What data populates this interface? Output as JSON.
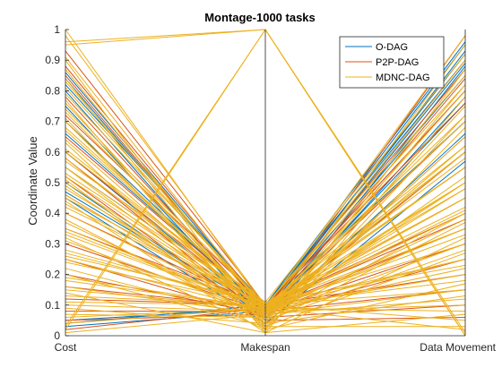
{
  "chart_data": {
    "type": "parallel-coordinates",
    "title": "Montage-1000 tasks",
    "xlabel": "",
    "ylabel": "Coordinate Value",
    "ylim": [
      0,
      1
    ],
    "y_ticks": [
      "0",
      "0.1",
      "0.2",
      "0.3",
      "0.4",
      "0.5",
      "0.6",
      "0.7",
      "0.8",
      "0.9",
      "1"
    ],
    "categories": [
      "Cost",
      "Makespan",
      "Data Movement"
    ],
    "grid": false,
    "legend_position": "top-right",
    "series": [
      {
        "name": "O-DAG",
        "color": "#0072BD",
        "lines": [
          [
            0.86,
            0.09,
            0.95
          ],
          [
            0.84,
            0.08,
            0.93
          ],
          [
            0.82,
            0.1,
            0.9
          ],
          [
            0.75,
            0.05,
            0.88
          ],
          [
            0.7,
            0.08,
            0.85
          ],
          [
            0.66,
            0.09,
            0.8
          ],
          [
            0.6,
            0.07,
            0.76
          ],
          [
            0.55,
            0.1,
            0.7
          ],
          [
            0.5,
            0.06,
            0.66
          ],
          [
            0.47,
            0.08,
            0.6
          ],
          [
            0.45,
            0.04,
            0.57
          ],
          [
            0.05,
            0.09,
            0.92
          ],
          [
            0.04,
            0.1,
            0.96
          ],
          [
            0.03,
            0.08,
            0.89
          ],
          [
            0.8,
            0.06,
            0.78
          ]
        ]
      },
      {
        "name": "P2P-DAG",
        "color": "#D95319",
        "lines": [
          [
            0.93,
            0.1,
            0.4
          ],
          [
            0.88,
            0.09,
            0.35
          ],
          [
            0.85,
            0.08,
            0.3
          ],
          [
            0.78,
            0.07,
            0.25
          ],
          [
            0.72,
            0.1,
            0.2
          ],
          [
            0.65,
            0.09,
            0.55
          ],
          [
            0.6,
            0.08,
            0.15
          ],
          [
            0.58,
            0.06,
            0.1
          ],
          [
            0.52,
            0.05,
            0.06
          ],
          [
            0.46,
            0.07,
            0.84
          ],
          [
            0.4,
            0.09,
            0.8
          ],
          [
            0.35,
            0.1,
            0.76
          ],
          [
            0.3,
            0.08,
            0.7
          ],
          [
            0.25,
            0.06,
            0.65
          ],
          [
            0.2,
            0.07,
            0.6
          ],
          [
            0.16,
            0.09,
            0.45
          ],
          [
            0.12,
            0.1,
            0.38
          ],
          [
            0.08,
            0.08,
            0.9
          ],
          [
            0.05,
            0.07,
            0.98
          ],
          [
            0.02,
            0.09,
            0.87
          ]
        ]
      },
      {
        "name": "MDNC-DAG",
        "color": "#EDB120",
        "lines": [
          [
            1.0,
            0.09,
            0.02
          ],
          [
            0.98,
            0.1,
            0.05
          ],
          [
            0.95,
            1.0,
            0.0
          ],
          [
            0.96,
            1.0,
            0.0
          ],
          [
            0.02,
            1.0,
            0.01
          ],
          [
            0.03,
            1.0,
            0.0
          ],
          [
            0.91,
            0.08,
            0.1
          ],
          [
            0.87,
            0.07,
            0.15
          ],
          [
            0.83,
            0.09,
            0.2
          ],
          [
            0.79,
            0.1,
            0.25
          ],
          [
            0.76,
            0.06,
            0.3
          ],
          [
            0.73,
            0.08,
            0.35
          ],
          [
            0.7,
            0.05,
            0.4
          ],
          [
            0.67,
            0.09,
            0.45
          ],
          [
            0.64,
            0.07,
            0.5
          ],
          [
            0.61,
            0.1,
            0.55
          ],
          [
            0.58,
            0.08,
            0.6
          ],
          [
            0.55,
            0.06,
            0.65
          ],
          [
            0.52,
            0.09,
            0.7
          ],
          [
            0.49,
            0.05,
            0.75
          ],
          [
            0.46,
            0.07,
            0.8
          ],
          [
            0.43,
            0.1,
            0.85
          ],
          [
            0.4,
            0.08,
            0.9
          ],
          [
            0.37,
            0.06,
            0.95
          ],
          [
            0.34,
            0.09,
            0.98
          ],
          [
            0.31,
            0.07,
            0.12
          ],
          [
            0.28,
            0.1,
            0.18
          ],
          [
            0.25,
            0.08,
            0.22
          ],
          [
            0.22,
            0.05,
            0.28
          ],
          [
            0.19,
            0.09,
            0.33
          ],
          [
            0.16,
            0.07,
            0.38
          ],
          [
            0.13,
            0.1,
            0.42
          ],
          [
            0.1,
            0.08,
            0.48
          ],
          [
            0.07,
            0.06,
            0.52
          ],
          [
            0.04,
            0.09,
            0.58
          ],
          [
            0.01,
            0.07,
            0.62
          ],
          [
            0.9,
            0.02,
            0.68
          ],
          [
            0.84,
            0.03,
            0.72
          ],
          [
            0.77,
            0.01,
            0.78
          ],
          [
            0.71,
            0.04,
            0.82
          ],
          [
            0.63,
            0.02,
            0.87
          ],
          [
            0.57,
            0.11,
            0.92
          ],
          [
            0.51,
            0.03,
            0.03
          ],
          [
            0.44,
            0.01,
            0.07
          ],
          [
            0.38,
            0.04,
            0.13
          ],
          [
            0.32,
            0.02,
            0.17
          ],
          [
            0.26,
            0.11,
            0.23
          ],
          [
            0.2,
            0.03,
            0.27
          ],
          [
            0.14,
            0.01,
            0.32
          ],
          [
            0.09,
            0.04,
            0.37
          ],
          [
            0.6,
            0.1,
            0.5
          ],
          [
            0.5,
            0.09,
            0.55
          ],
          [
            0.45,
            0.1,
            0.45
          ],
          [
            0.35,
            0.09,
            0.5
          ],
          [
            0.55,
            0.1,
            0.6
          ],
          [
            0.68,
            0.09,
            0.4
          ],
          [
            0.74,
            0.1,
            0.3
          ],
          [
            0.81,
            0.09,
            0.2
          ],
          [
            0.27,
            0.1,
            0.35
          ],
          [
            0.18,
            0.09,
            0.25
          ],
          [
            0.11,
            0.1,
            0.15
          ],
          [
            0.06,
            0.09,
            0.08
          ],
          [
            0.42,
            0.1,
            0.62
          ],
          [
            0.48,
            0.09,
            0.72
          ],
          [
            0.53,
            0.1,
            0.82
          ],
          [
            0.33,
            0.09,
            0.55
          ],
          [
            0.24,
            0.1,
            0.48
          ],
          [
            0.15,
            0.09,
            0.41
          ]
        ]
      }
    ]
  }
}
